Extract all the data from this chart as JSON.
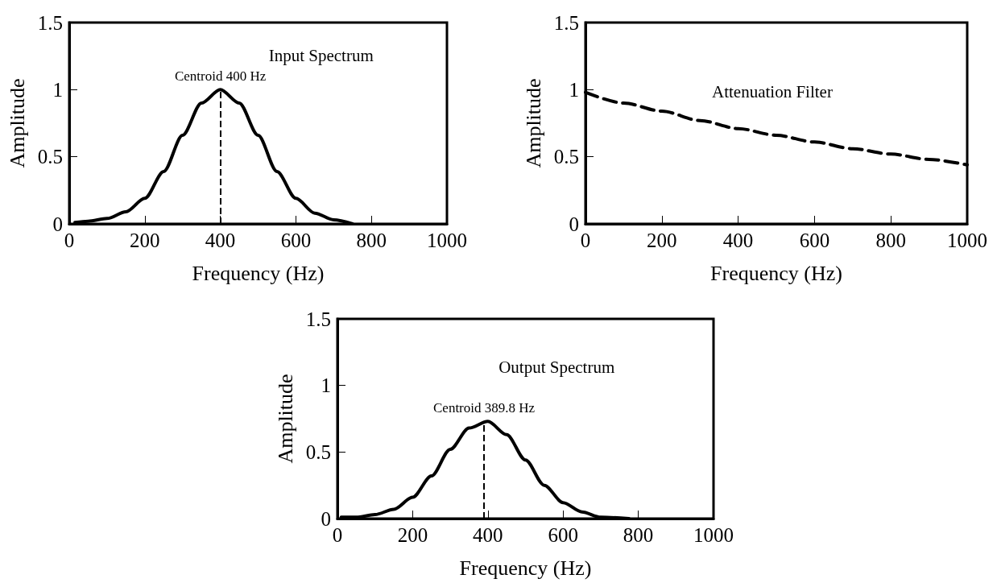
{
  "chart_data": [
    {
      "type": "line",
      "xlabel": "Frequency (Hz)",
      "ylabel": "Amplitude",
      "annotations": [
        "Input Spectrum"
      ],
      "x": [
        15,
        50,
        100,
        150,
        200,
        250,
        300,
        350,
        400,
        450,
        500,
        550,
        600,
        650,
        700,
        750
      ],
      "series": [
        {
          "color": "#000000",
          "values": [
            0.01,
            0.02,
            0.04,
            0.09,
            0.19,
            0.39,
            0.66,
            0.9,
            1,
            0.9,
            0.66,
            0.39,
            0.19,
            0.08,
            0.03,
            0.0
          ]
        }
      ],
      "xlim": [
        0,
        1000
      ],
      "xticks": [
        0,
        200,
        400,
        600,
        800,
        1000
      ],
      "ylim": [
        0,
        1.5
      ],
      "yticks": [
        0,
        0.5,
        1,
        1.5
      ],
      "marker": "none",
      "line_style": "solid",
      "ref_lines": [
        {
          "axis": "x",
          "value": 400,
          "label": "Centroid 400 Hz",
          "line_style": "dashed",
          "color": "#000000"
        }
      ]
    },
    {
      "type": "line",
      "xlabel": "Frequency (Hz)",
      "ylabel": "Amplitude",
      "annotations": [
        "Attenuation Filter"
      ],
      "x": [
        0,
        100,
        200,
        300,
        400,
        500,
        600,
        700,
        800,
        900,
        1000
      ],
      "series": [
        {
          "color": "#000000",
          "values": [
            0.98,
            0.9,
            0.84,
            0.77,
            0.71,
            0.66,
            0.61,
            0.56,
            0.52,
            0.48,
            0.44
          ]
        }
      ],
      "xlim": [
        0,
        1000
      ],
      "xticks": [
        0,
        200,
        400,
        600,
        800,
        1000
      ],
      "ylim": [
        0,
        1.5
      ],
      "yticks": [
        0,
        0.5,
        1,
        1.5
      ],
      "marker": "none",
      "line_style": "dashed"
    },
    {
      "type": "line",
      "xlabel": "Frequency (Hz)",
      "ylabel": "Amplitude",
      "annotations": [
        "Output Spectrum"
      ],
      "x": [
        10,
        50,
        100,
        150,
        200,
        250,
        300,
        350,
        400,
        450,
        500,
        550,
        600,
        650,
        700,
        775
      ],
      "series": [
        {
          "color": "#000000",
          "values": [
            0.01,
            0.01,
            0.03,
            0.07,
            0.16,
            0.32,
            0.52,
            0.68,
            0.73,
            0.63,
            0.44,
            0.25,
            0.12,
            0.05,
            0.01,
            0.0
          ]
        }
      ],
      "xlim": [
        0,
        1000
      ],
      "xticks": [
        0,
        200,
        400,
        600,
        800,
        1000
      ],
      "ylim": [
        0,
        1.5
      ],
      "yticks": [
        0,
        0.5,
        1,
        1.5
      ],
      "marker": "none",
      "line_style": "solid",
      "ref_lines": [
        {
          "axis": "x",
          "value": 389.8,
          "label": "Centroid 389.8 Hz",
          "line_style": "dashed",
          "color": "#000000"
        }
      ]
    }
  ]
}
